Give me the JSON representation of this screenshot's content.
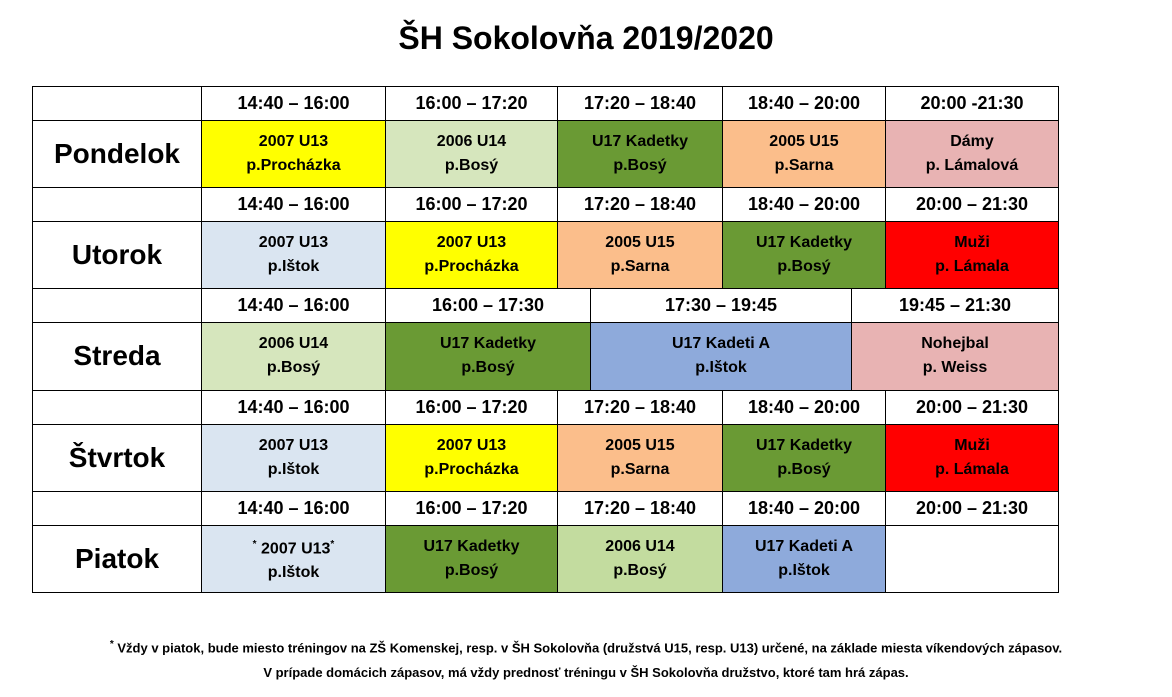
{
  "title": "ŠH Sokolovňa 2019/2020",
  "days": [
    {
      "name": "Pondelok",
      "times": [
        "14:40 – 16:00",
        "16:00 – 17:20",
        "17:20 – 18:40",
        "18:40 – 20:00",
        "20:00 -21:30"
      ],
      "sessions": [
        {
          "team": "2007 U13",
          "coach": "p.Procházka",
          "color": "#ffff00"
        },
        {
          "team": "2006 U14",
          "coach": "p.Bosý",
          "color": "#d6e6bd"
        },
        {
          "team": "U17 Kadetky",
          "coach": "p.Bosý",
          "color": "#6a9a34"
        },
        {
          "team": "2005 U15",
          "coach": "p.Sarna",
          "color": "#fbbe8b"
        },
        {
          "team": "Dámy",
          "coach": "p. Lámalová",
          "color": "#e8b3b3"
        }
      ]
    },
    {
      "name": "Utorok",
      "times": [
        "14:40 – 16:00",
        "16:00 – 17:20",
        "17:20 – 18:40",
        "18:40 – 20:00",
        "20:00 – 21:30"
      ],
      "sessions": [
        {
          "team": "2007 U13",
          "coach": "p.Ištok",
          "color": "#dae5f1"
        },
        {
          "team": "2007 U13",
          "coach": "p.Procházka",
          "color": "#ffff00"
        },
        {
          "team": "2005 U15",
          "coach": "p.Sarna",
          "color": "#fbbe8b"
        },
        {
          "team": "U17 Kadetky",
          "coach": "p.Bosý",
          "color": "#6a9a34"
        },
        {
          "team": "Muži",
          "coach": "p. Lámala",
          "color": "#ff0000"
        }
      ]
    },
    {
      "name": "Streda",
      "times": [
        "14:40 – 16:00",
        "16:00 – 17:30",
        "17:30 – 19:45",
        "19:45 – 21:30"
      ],
      "sessions": [
        {
          "team": "2006 U14",
          "coach": "p.Bosý",
          "color": "#d6e6bd"
        },
        {
          "team": "U17 Kadetky",
          "coach": "p.Bosý",
          "color": "#6a9a34"
        },
        {
          "team": "U17 Kadeti A",
          "coach": "p.Ištok",
          "color": "#8eaadb"
        },
        {
          "team": "Nohejbal",
          "coach": "p. Weiss",
          "color": "#e8b3b3"
        }
      ]
    },
    {
      "name": "Štvrtok",
      "times": [
        "14:40 – 16:00",
        "16:00 – 17:20",
        "17:20 – 18:40",
        "18:40 – 20:00",
        "20:00 – 21:30"
      ],
      "sessions": [
        {
          "team": "2007 U13",
          "coach": "p.Ištok",
          "color": "#dae5f1"
        },
        {
          "team": "2007 U13",
          "coach": "p.Procházka",
          "color": "#ffff00"
        },
        {
          "team": "2005 U15",
          "coach": "p.Sarna",
          "color": "#fbbe8b"
        },
        {
          "team": "U17 Kadetky",
          "coach": "p.Bosý",
          "color": "#6a9a34"
        },
        {
          "team": "Muži",
          "coach": "p. Lámala",
          "color": "#ff0000"
        }
      ]
    },
    {
      "name": "Piatok",
      "times": [
        "14:40 – 16:00",
        "16:00 – 17:20",
        "17:20 – 18:40",
        "18:40 – 20:00",
        "20:00 – 21:30"
      ],
      "sessions": [
        {
          "marker": "*",
          "team": "2007 U13",
          "coach": "p.Ištok",
          "color": "#dae5f1"
        },
        {
          "team": "U17 Kadetky",
          "coach": "p.Bosý",
          "color": "#6a9a34"
        },
        {
          "team": "2006 U14",
          "coach": "p.Bosý",
          "color": "#c3dc9f"
        },
        {
          "team": "U17 Kadeti A",
          "coach": "p.Ištok",
          "color": "#8eaadb"
        },
        {
          "color": "#ffffff"
        }
      ]
    }
  ],
  "footnote": {
    "marker": "*",
    "lines": [
      "Vždy v piatok, bude miesto tréningov na ZŠ Komenskej, resp. v ŠH Sokolovňa (družstvá U15, resp. U13) určené,  na základe miesta víkendových zápasov.",
      "V prípade domácich zápasov, má vždy prednosť tréningu v ŠH Sokolovňa družstvo, ktoré tam hrá zápas."
    ]
  }
}
